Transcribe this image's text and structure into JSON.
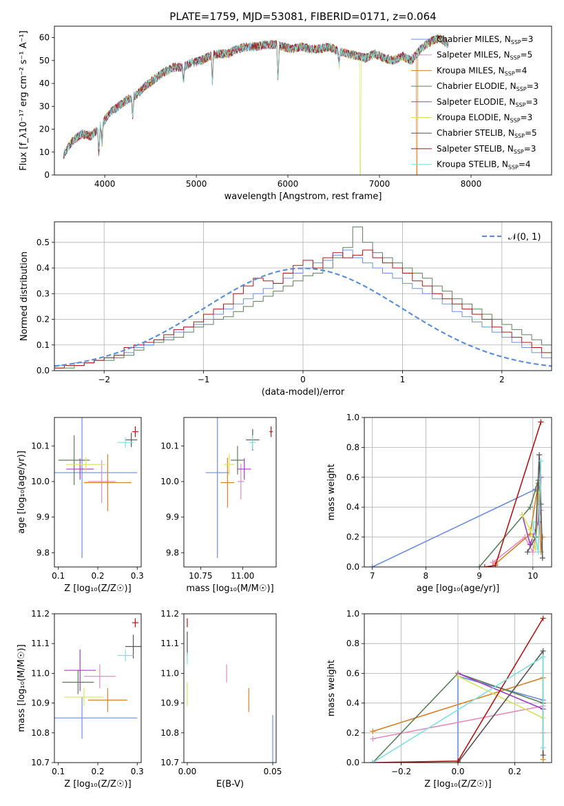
{
  "figure_title": "PLATE=1759, MJD=53081, FIBERID=0171, z=0.064",
  "colors": {
    "c1": "#6a8ee0",
    "c2": "#e58ac0",
    "c3": "#d97f24",
    "c4": "#5a7f5a",
    "c5": "#a33ac4",
    "c6": "#d8e35a",
    "c7": "#555555",
    "c8": "#b31515",
    "c9": "#7fe0e0",
    "normal": "#5b8fd9",
    "grid": "#b0b0b0"
  },
  "chart_data": [
    {
      "id": "spectrum",
      "type": "line",
      "xlabel": "wavelength [Angstrom, rest frame]",
      "ylabel": "Flux [f_λ10⁻¹⁷ erg cm⁻² s⁻¹ A⁻¹]",
      "xlim": [
        3450,
        8880
      ],
      "ylim": [
        0,
        65
      ],
      "xticks": [
        4000,
        5000,
        6000,
        7000,
        8000
      ],
      "yticks": [
        0,
        10,
        20,
        30,
        40,
        50,
        60
      ],
      "grid": false,
      "legend_position": "upper-right",
      "legend": [
        {
          "model": "Chabrier MILES",
          "nssp": "3",
          "color": "c1"
        },
        {
          "model": "Salpeter MILES",
          "nssp": "5",
          "color": "c2"
        },
        {
          "model": "Kroupa MILES",
          "nssp": "4",
          "color": "c3"
        },
        {
          "model": "Chabrier ELODIE",
          "nssp": "3",
          "color": "c4"
        },
        {
          "model": "Salpeter ELODIE",
          "nssp": "3",
          "color": "c5"
        },
        {
          "model": "Kroupa ELODIE",
          "nssp": "3",
          "color": "c6"
        },
        {
          "model": "Chabrier STELIB",
          "nssp": "5",
          "color": "c7"
        },
        {
          "model": "Salpeter STELIB",
          "nssp": "3",
          "color": "c8"
        },
        {
          "model": "Kroupa STELIB",
          "nssp": "4",
          "color": "c9"
        }
      ],
      "continuum": {
        "x": [
          3550,
          3650,
          3750,
          3850,
          3950,
          4050,
          4150,
          4250,
          4350,
          4450,
          4550,
          4650,
          4750,
          4850,
          4950,
          5050,
          5150,
          5250,
          5350,
          5450,
          5550,
          5650,
          5750,
          5850,
          5950,
          6050,
          6150,
          6250,
          6350,
          6450,
          6550,
          6650,
          6750,
          6850,
          6950,
          7050,
          7150,
          7250,
          7350,
          7450,
          7550,
          7650,
          7750
        ],
        "y": [
          9,
          15,
          18,
          17,
          21,
          27,
          30,
          33,
          35,
          39,
          42,
          45,
          47,
          47,
          49,
          50,
          52,
          53,
          53,
          55,
          56,
          56,
          57,
          57,
          56,
          55,
          56,
          55,
          55,
          56,
          54,
          53,
          52,
          51,
          53,
          51,
          50,
          52,
          50,
          55,
          58,
          60,
          57
        ]
      },
      "features": [
        {
          "x": 3935,
          "depth": 12
        },
        {
          "x": 3970,
          "depth": 8
        },
        {
          "x": 4305,
          "depth": 8
        },
        {
          "x": 4860,
          "depth": 7
        },
        {
          "x": 5175,
          "depth": 12
        },
        {
          "x": 5892,
          "depth": 16
        },
        {
          "x": 6560,
          "depth": 6
        }
      ],
      "dropouts": [
        {
          "x": 6790,
          "color": "c6"
        },
        {
          "x": 7410,
          "color": "c3"
        }
      ]
    },
    {
      "id": "residuals",
      "type": "histogram",
      "xlabel": "(data-model)/error",
      "ylabel": "Normed distribution",
      "xlim": [
        -2.5,
        2.5
      ],
      "ylim": [
        0,
        0.58
      ],
      "xticks": [
        -2,
        -1,
        0,
        1,
        2
      ],
      "yticks": [
        0.0,
        0.1,
        0.2,
        0.3,
        0.4,
        0.5
      ],
      "grid": true,
      "legend_position": "upper-right",
      "legend_label": "𝒩(0, 1)",
      "bin_width": 0.1,
      "bins_start": -2.5,
      "series": [
        {
          "color": "c4",
          "values": [
            0.01,
            0.01,
            0.02,
            0.03,
            0.04,
            0.04,
            0.05,
            0.06,
            0.08,
            0.1,
            0.11,
            0.12,
            0.13,
            0.15,
            0.17,
            0.18,
            0.2,
            0.21,
            0.23,
            0.25,
            0.27,
            0.29,
            0.31,
            0.33,
            0.35,
            0.37,
            0.38,
            0.4,
            0.44,
            0.48,
            0.56,
            0.5,
            0.46,
            0.44,
            0.42,
            0.4,
            0.38,
            0.36,
            0.33,
            0.31,
            0.28,
            0.26,
            0.24,
            0.22,
            0.2,
            0.18,
            0.16,
            0.14,
            0.12,
            0.1
          ]
        },
        {
          "color": "c1",
          "values": [
            0.02,
            0.02,
            0.03,
            0.03,
            0.04,
            0.05,
            0.06,
            0.07,
            0.09,
            0.1,
            0.12,
            0.13,
            0.15,
            0.17,
            0.18,
            0.2,
            0.22,
            0.24,
            0.26,
            0.28,
            0.3,
            0.32,
            0.34,
            0.36,
            0.38,
            0.4,
            0.42,
            0.43,
            0.45,
            0.47,
            0.44,
            0.42,
            0.4,
            0.38,
            0.36,
            0.34,
            0.32,
            0.3,
            0.28,
            0.26,
            0.23,
            0.21,
            0.19,
            0.17,
            0.15,
            0.13,
            0.11,
            0.09,
            0.07,
            0.05
          ]
        },
        {
          "color": "c8",
          "values": [
            0.01,
            0.02,
            0.02,
            0.03,
            0.04,
            0.05,
            0.06,
            0.09,
            0.1,
            0.11,
            0.12,
            0.14,
            0.16,
            0.17,
            0.19,
            0.22,
            0.24,
            0.26,
            0.3,
            0.33,
            0.36,
            0.35,
            0.34,
            0.38,
            0.41,
            0.43,
            0.4,
            0.44,
            0.46,
            0.44,
            0.45,
            0.47,
            0.44,
            0.42,
            0.4,
            0.38,
            0.35,
            0.33,
            0.3,
            0.28,
            0.26,
            0.24,
            0.22,
            0.2,
            0.17,
            0.15,
            0.13,
            0.11,
            0.09,
            0.07
          ]
        }
      ]
    },
    {
      "id": "age_vs_Z",
      "type": "errorbar",
      "xlabel": "Z [log₁₀(Z/Z☉)]",
      "ylabel": "age  [log₁₀(age/yr)]",
      "xlim": [
        0.09,
        0.31
      ],
      "ylim": [
        9.76,
        10.18
      ],
      "xticks": [
        0.1,
        0.2,
        0.3
      ],
      "yticks": [
        9.8,
        9.9,
        10.0,
        10.1
      ],
      "points": [
        {
          "color": "c1",
          "x": 0.16,
          "xerr": 0.14,
          "y": 10.025,
          "yerr": 0.24
        },
        {
          "color": "c2",
          "x": 0.21,
          "xerr": 0.035,
          "y": 10.0,
          "yerr": 0.06
        },
        {
          "color": "c3",
          "x": 0.225,
          "xerr": 0.06,
          "y": 9.997,
          "yerr": 0.08
        },
        {
          "color": "c4",
          "x": 0.14,
          "xerr": 0.04,
          "y": 10.06,
          "yerr": 0.07
        },
        {
          "color": "c5",
          "x": 0.155,
          "xerr": 0.035,
          "y": 10.035,
          "yerr": 0.03
        },
        {
          "color": "c6",
          "x": 0.17,
          "xerr": 0.05,
          "y": 10.048,
          "yerr": 0.02
        },
        {
          "color": "c7",
          "x": 0.285,
          "xerr": 0.015,
          "y": 10.117,
          "yerr": 0.02
        },
        {
          "color": "c8",
          "x": 0.295,
          "xerr": 0.008,
          "y": 10.14,
          "yerr": 0.015
        },
        {
          "color": "c9",
          "x": 0.27,
          "xerr": 0.02,
          "y": 10.11,
          "yerr": 0.015
        }
      ]
    },
    {
      "id": "age_vs_mass",
      "type": "errorbar",
      "xlabel": "mass [log₁₀(M/M☉)]",
      "ylabel": "",
      "xlim": [
        10.65,
        11.2
      ],
      "ylim": [
        9.76,
        10.18
      ],
      "xticks": [
        10.75,
        11.0
      ],
      "yticks": [
        9.8,
        9.9,
        10.0,
        10.1
      ],
      "points": [
        {
          "color": "c1",
          "x": 10.85,
          "xerr": 0.07,
          "y": 10.025,
          "yerr": 0.24
        },
        {
          "color": "c2",
          "x": 10.99,
          "xerr": 0.02,
          "y": 10.0,
          "yerr": 0.05
        },
        {
          "color": "c3",
          "x": 10.91,
          "xerr": 0.04,
          "y": 9.997,
          "yerr": 0.07
        },
        {
          "color": "c4",
          "x": 10.97,
          "xerr": 0.04,
          "y": 10.06,
          "yerr": 0.04
        },
        {
          "color": "c5",
          "x": 11.01,
          "xerr": 0.04,
          "y": 10.035,
          "yerr": 0.03
        },
        {
          "color": "c6",
          "x": 10.92,
          "xerr": 0.03,
          "y": 10.048,
          "yerr": 0.03
        },
        {
          "color": "c7",
          "x": 11.06,
          "xerr": 0.04,
          "y": 10.117,
          "yerr": 0.03
        },
        {
          "color": "c8",
          "x": 11.17,
          "xerr": 0.01,
          "y": 10.14,
          "yerr": 0.015
        },
        {
          "color": "c9",
          "x": 11.06,
          "xerr": 0.02,
          "y": 10.11,
          "yerr": 0.02
        }
      ]
    },
    {
      "id": "mass_weight_vs_age",
      "type": "line",
      "xlabel": "age  [log₁₀(age/yr)]",
      "ylabel": "mass weight",
      "xlim": [
        6.85,
        10.35
      ],
      "ylim": [
        0,
        1
      ],
      "xticks": [
        7,
        8,
        9,
        10
      ],
      "yticks": [
        0.0,
        0.2,
        0.4,
        0.6,
        0.8,
        1.0
      ],
      "grid": true,
      "series": [
        {
          "color": "c1",
          "x": [
            7.0,
            10.05,
            10.15
          ],
          "y": [
            0.0,
            0.52,
            0.42
          ]
        },
        {
          "color": "c2",
          "x": [
            9.25,
            9.85,
            10.0,
            10.1,
            10.15
          ],
          "y": [
            0.03,
            0.2,
            0.1,
            0.3,
            0.38
          ]
        },
        {
          "color": "c3",
          "x": [
            9.3,
            9.95,
            10.1,
            10.15,
            10.18
          ],
          "y": [
            0.02,
            0.22,
            0.56,
            0.1,
            0.2
          ]
        },
        {
          "color": "c4",
          "x": [
            9.0,
            9.95,
            10.1,
            10.15
          ],
          "y": [
            0.0,
            0.4,
            0.58,
            0.42
          ]
        },
        {
          "color": "c5",
          "x": [
            9.8,
            9.95,
            10.1,
            10.15
          ],
          "y": [
            0.35,
            0.15,
            0.3,
            0.6
          ]
        },
        {
          "color": "c6",
          "x": [
            9.8,
            9.95,
            10.05,
            10.1
          ],
          "y": [
            0.35,
            0.25,
            0.12,
            0.5
          ]
        },
        {
          "color": "c7",
          "x": [
            9.9,
            10.05,
            10.12,
            10.18
          ],
          "y": [
            0.1,
            0.2,
            0.75,
            0.06
          ]
        },
        {
          "color": "c8",
          "x": [
            9.1,
            9.3,
            10.15
          ],
          "y": [
            0.0,
            0.01,
            0.97
          ]
        },
        {
          "color": "c9",
          "x": [
            10.0,
            10.1,
            10.15
          ],
          "y": [
            0.3,
            0.1,
            0.71
          ]
        }
      ]
    },
    {
      "id": "mass_vs_Z",
      "type": "errorbar",
      "xlabel": "Z [log₁₀(Z/Z☉)]",
      "ylabel": "mass [log₁₀(M/M☉)]",
      "xlim": [
        0.09,
        0.31
      ],
      "ylim": [
        10.7,
        11.2
      ],
      "xticks": [
        0.1,
        0.2,
        0.3
      ],
      "yticks": [
        10.7,
        10.8,
        10.9,
        11.0,
        11.1,
        11.2
      ],
      "points": [
        {
          "color": "c1",
          "x": 0.16,
          "xerr": 0.14,
          "y": 10.85,
          "yerr": 0.07
        },
        {
          "color": "c2",
          "x": 0.205,
          "xerr": 0.04,
          "y": 10.99,
          "yerr": 0.04
        },
        {
          "color": "c3",
          "x": 0.225,
          "xerr": 0.05,
          "y": 10.91,
          "yerr": 0.04
        },
        {
          "color": "c4",
          "x": 0.15,
          "xerr": 0.04,
          "y": 10.97,
          "yerr": 0.04
        },
        {
          "color": "c5",
          "x": 0.155,
          "xerr": 0.04,
          "y": 11.01,
          "yerr": 0.07
        },
        {
          "color": "c6",
          "x": 0.165,
          "xerr": 0.05,
          "y": 10.92,
          "yerr": 0.03
        },
        {
          "color": "c7",
          "x": 0.29,
          "xerr": 0.02,
          "y": 11.09,
          "yerr": 0.04
        },
        {
          "color": "c8",
          "x": 0.295,
          "xerr": 0.008,
          "y": 11.17,
          "yerr": 0.015
        },
        {
          "color": "c9",
          "x": 0.27,
          "xerr": 0.02,
          "y": 11.06,
          "yerr": 0.02
        }
      ]
    },
    {
      "id": "mass_vs_ebv",
      "type": "errorbar",
      "xlabel": "E(B-V)",
      "ylabel": "",
      "xlim": [
        -0.002,
        0.052
      ],
      "ylim": [
        10.7,
        11.2
      ],
      "xticks": [
        0.0,
        0.05
      ],
      "yticks": [
        10.7,
        10.8,
        10.9,
        11.0,
        11.1,
        11.2
      ],
      "points": [
        {
          "color": "c1",
          "x": 0.05,
          "xerr": 0,
          "y": 10.78,
          "yerr": 0.08
        },
        {
          "color": "c2",
          "x": 0.023,
          "xerr": 0,
          "y": 11.0,
          "yerr": 0.03
        },
        {
          "color": "c3",
          "x": 0.036,
          "xerr": 0,
          "y": 10.91,
          "yerr": 0.04
        },
        {
          "color": "c6",
          "x": 0.0,
          "xerr": 0,
          "y": 10.93,
          "yerr": 0.04
        },
        {
          "color": "c7",
          "x": 0.0,
          "xerr": 0,
          "y": 11.1,
          "yerr": 0.04
        },
        {
          "color": "c8",
          "x": 0.0,
          "xerr": 0,
          "y": 11.17,
          "yerr": 0.015
        },
        {
          "color": "c9",
          "x": 0.0,
          "xerr": 0,
          "y": 11.05,
          "yerr": 0.02
        }
      ]
    },
    {
      "id": "mass_weight_vs_Z",
      "type": "line",
      "xlabel": "Z [log₁₀(Z/Z☉)]",
      "ylabel": "mass weight",
      "xlim": [
        -0.33,
        0.33
      ],
      "ylim": [
        0,
        1
      ],
      "xticks": [
        -0.2,
        0.0,
        0.2
      ],
      "yticks": [
        0.0,
        0.2,
        0.4,
        0.6,
        0.8,
        1.0
      ],
      "grid": true,
      "series": [
        {
          "color": "c1",
          "x": [
            0.0,
            0.0,
            0.3,
            0.3
          ],
          "y": [
            0.0,
            0.58,
            0.42,
            0.4
          ]
        },
        {
          "color": "c2",
          "x": [
            -0.3,
            0.3,
            0.3
          ],
          "y": [
            0.16,
            0.38,
            0.2
          ]
        },
        {
          "color": "c3",
          "x": [
            -0.3,
            0.3,
            0.3
          ],
          "y": [
            0.21,
            0.57,
            0.02
          ]
        },
        {
          "color": "c4",
          "x": [
            -0.3,
            0.0,
            0.3
          ],
          "y": [
            0.0,
            0.6,
            0.4
          ]
        },
        {
          "color": "c5",
          "x": [
            0.0,
            0.3
          ],
          "y": [
            0.6,
            0.36
          ]
        },
        {
          "color": "c6",
          "x": [
            0.0,
            0.3
          ],
          "y": [
            0.58,
            0.3
          ]
        },
        {
          "color": "c7",
          "x": [
            0.0,
            0.3,
            0.3
          ],
          "y": [
            0.0,
            0.75,
            0.05
          ]
        },
        {
          "color": "c8",
          "x": [
            -0.3,
            0.0,
            0.3
          ],
          "y": [
            0.0,
            0.01,
            0.97
          ]
        },
        {
          "color": "c9",
          "x": [
            -0.3,
            0.3,
            0.3
          ],
          "y": [
            0.0,
            0.71,
            0.1
          ]
        }
      ]
    }
  ]
}
